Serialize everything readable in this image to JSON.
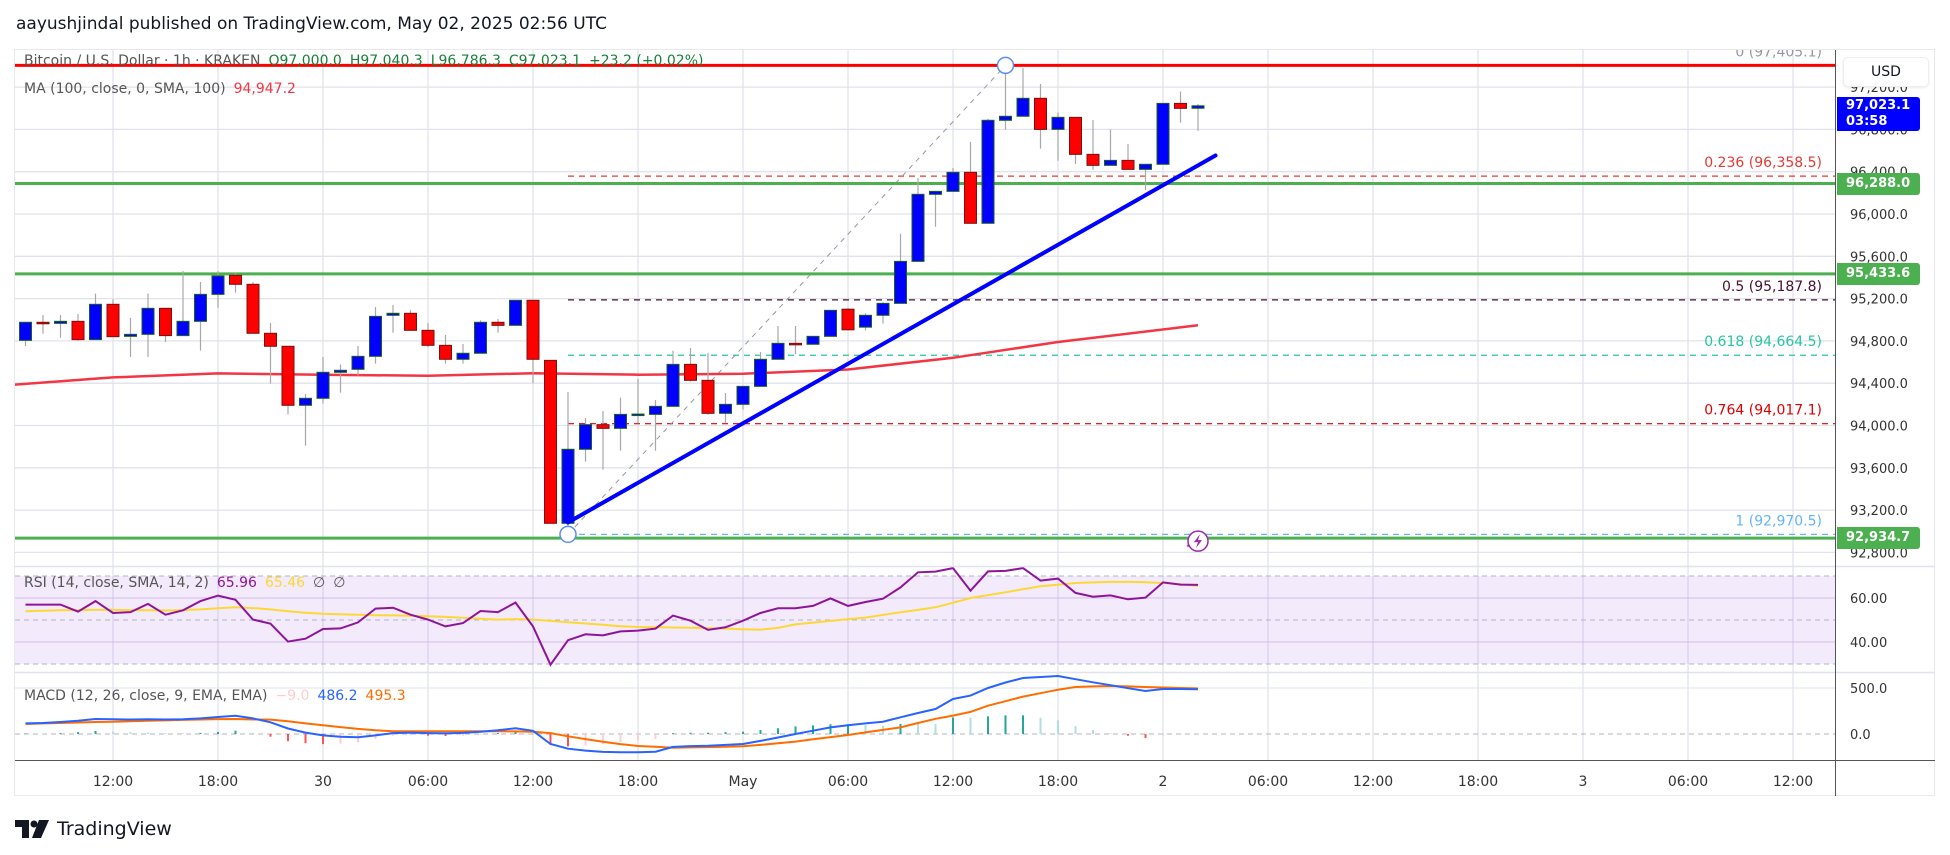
{
  "header": {
    "published": "aayushjindal published on TradingView.com, May 02, 2025 02:56 UTC"
  },
  "legend": {
    "symbol": "Bitcoin / U.S. Dollar · 1h · KRAKEN",
    "open": "O97,000.0",
    "high": "H97,040.3",
    "low": "L96,786.3",
    "close": "C97,023.1",
    "change": "+23.2 (+0.02%)",
    "ma_label": "MA (100, close, 0, SMA, 100)",
    "ma_value": "94,947.2",
    "rsi_label": "RSI (14, close, SMA, 14, 2)",
    "rsi_value": "65.96",
    "rsi_sma_value": "65.46",
    "rsi_extra1": "∅",
    "rsi_extra2": "∅",
    "macd_label": "MACD (12, 26, close, 9, EMA, EMA)",
    "macd_hist": "−9.0",
    "macd_value": "486.2",
    "macd_signal": "495.3"
  },
  "price_axis": {
    "currency": "USD",
    "ticks": [
      "97,200.0",
      "96,800.0",
      "96,400.0",
      "96,000.0",
      "95,600.0",
      "95,200.0",
      "94,800.0",
      "94,400.0",
      "94,000.0",
      "93,600.0",
      "93,200.0",
      "92,800.0"
    ],
    "tick_values": [
      97200,
      96800,
      96400,
      96000,
      95600,
      95200,
      94800,
      94400,
      94000,
      93600,
      93200,
      92800
    ],
    "last_price": "97,023.1",
    "last_price_value": 97023.1,
    "countdown": "03:58",
    "badges": [
      {
        "label": "96,288.0",
        "value": 96288.0
      },
      {
        "label": "95,433.6",
        "value": 95433.6
      },
      {
        "label": "92,934.7",
        "value": 92934.7
      }
    ]
  },
  "rsi_axis": {
    "ticks": [
      "60.00",
      "40.00"
    ],
    "tick_values": [
      60,
      40
    ]
  },
  "macd_axis": {
    "ticks": [
      "500.0",
      "0.0"
    ],
    "tick_values": [
      500,
      0
    ]
  },
  "time_axis": {
    "labels": [
      "12:00",
      "18:00",
      "30",
      "06:00",
      "12:00",
      "18:00",
      "May",
      "06:00",
      "12:00",
      "18:00",
      "2",
      "06:00",
      "12:00",
      "18:00",
      "3",
      "06:00",
      "12:00"
    ]
  },
  "colors": {
    "up": "#0000ff",
    "down": "#ff0000",
    "support": "#4caf50",
    "resistance": "#ff0000",
    "trendline": "#0000ff",
    "ma": "#f23645",
    "rsi": "#8e1599",
    "rsi_sma": "#fdd835",
    "macd": "#2962ff",
    "signal": "#ff6d00",
    "last_price": "#0000ff"
  },
  "chart_data": {
    "type": "candlestick",
    "interval": "1h",
    "start": "2025-04-29 07:00",
    "candles_ohlc": [
      [
        94805,
        94980,
        94752,
        94976
      ],
      [
        94976,
        95045,
        94868,
        94970
      ],
      [
        94966,
        95045,
        94830,
        94985
      ],
      [
        94985,
        95054,
        94802,
        94812
      ],
      [
        94812,
        95247,
        94812,
        95146
      ],
      [
        95146,
        95193,
        94840,
        94840
      ],
      [
        94843,
        95017,
        94648,
        94862
      ],
      [
        94862,
        95247,
        94648,
        95108
      ],
      [
        95108,
        95108,
        94790,
        94850
      ],
      [
        94850,
        95461,
        94850,
        94985
      ],
      [
        94985,
        95357,
        94708,
        95240
      ],
      [
        95240,
        95460,
        95114,
        95414
      ],
      [
        95420,
        95440,
        95256,
        95335
      ],
      [
        95335,
        95357,
        94872,
        94872
      ],
      [
        94872,
        94969,
        94396,
        94749
      ],
      [
        94749,
        94749,
        94103,
        94191
      ],
      [
        94191,
        94298,
        93809,
        94257
      ],
      [
        94257,
        94648,
        94207,
        94503
      ],
      [
        94503,
        94578,
        94311,
        94522
      ],
      [
        94531,
        94752,
        94472,
        94654
      ],
      [
        94654,
        95120,
        94585,
        95032
      ],
      [
        95042,
        95140,
        94878,
        95061
      ],
      [
        95061,
        95092,
        94900,
        94900
      ],
      [
        94900,
        94969,
        94740,
        94758
      ],
      [
        94758,
        94856,
        94585,
        94626
      ],
      [
        94626,
        94771,
        94585,
        94683
      ],
      [
        94683,
        94995,
        94683,
        94976
      ],
      [
        94976,
        95007,
        94878,
        94947
      ],
      [
        94947,
        95184,
        94947,
        95184
      ],
      [
        95184,
        95184,
        94399,
        94626
      ],
      [
        94616,
        94616,
        93075,
        93075
      ],
      [
        93075,
        94317,
        92970,
        93775
      ],
      [
        93775,
        94071,
        93658,
        94008
      ],
      [
        94008,
        94137,
        93582,
        93973
      ],
      [
        93973,
        94263,
        93762,
        94105
      ],
      [
        94105,
        94440,
        94020,
        94108
      ],
      [
        94105,
        94241,
        93762,
        94181
      ],
      [
        94181,
        94708,
        94181,
        94578
      ],
      [
        94578,
        94733,
        94415,
        94427
      ],
      [
        94427,
        94686,
        94102,
        94115
      ],
      [
        94115,
        94307,
        94027,
        94200
      ],
      [
        94200,
        94370,
        94150,
        94370
      ],
      [
        94370,
        94695,
        94370,
        94626
      ],
      [
        94626,
        94941,
        94626,
        94777
      ],
      [
        94777,
        94941,
        94676,
        94774
      ],
      [
        94768,
        94843,
        94768,
        94843
      ],
      [
        94843,
        95092,
        94843,
        95089
      ],
      [
        95100,
        95110,
        94900,
        94905
      ],
      [
        94930,
        95060,
        94900,
        95042
      ],
      [
        95042,
        95165,
        94963,
        95155
      ],
      [
        95155,
        95814,
        95155,
        95552
      ],
      [
        95552,
        96340,
        95552,
        96186
      ],
      [
        96186,
        96214,
        95880,
        96214
      ],
      [
        96214,
        96435,
        96214,
        96394
      ],
      [
        96394,
        96681,
        95912,
        95912
      ],
      [
        95912,
        96900,
        95912,
        96886
      ],
      [
        96886,
        97405,
        96797,
        96924
      ],
      [
        96924,
        97380,
        96924,
        97094
      ],
      [
        97094,
        97229,
        96618,
        96800
      ],
      [
        96800,
        96961,
        96504,
        96914
      ],
      [
        96914,
        96914,
        96473,
        96564
      ],
      [
        96564,
        96889,
        96419,
        96460
      ],
      [
        96460,
        96797,
        96460,
        96507
      ],
      [
        96507,
        96662,
        96422,
        96422
      ],
      [
        96422,
        96470,
        96227,
        96470
      ],
      [
        96470,
        97046,
        96470,
        97046
      ],
      [
        97046,
        97157,
        96863,
        96999
      ],
      [
        97000,
        97040,
        96786,
        97023.1
      ]
    ],
    "ma100": [
      [
        "2025-04-29 05:00",
        94370
      ],
      [
        "2025-04-29 12:00",
        94455
      ],
      [
        "2025-04-29 18:00",
        94493
      ],
      [
        "2025-04-30 00:00",
        94480
      ],
      [
        "2025-04-30 06:00",
        94470
      ],
      [
        "2025-04-30 12:00",
        94495
      ],
      [
        "2025-04-30 18:00",
        94480
      ],
      [
        "2025-05-01 00:00",
        94490
      ],
      [
        "2025-05-01 06:00",
        94530
      ],
      [
        "2025-05-01 12:00",
        94640
      ],
      [
        "2025-05-01 18:00",
        94790
      ],
      [
        "2025-05-02 02:00",
        94947.2
      ]
    ],
    "horizontal_lines": [
      {
        "price": 97405.1,
        "color": "#ff0000"
      },
      {
        "price": 96288.0,
        "color": "#4caf50"
      },
      {
        "price": 95433.6,
        "color": "#4caf50"
      },
      {
        "price": 92934.7,
        "color": "#4caf50"
      }
    ],
    "trendline": [
      [
        "2025-04-30 14:00",
        93083
      ],
      [
        "2025-05-02 03:00",
        96553
      ]
    ],
    "fibonacci": {
      "from": [
        "2025-04-30 14:00",
        92970.5
      ],
      "to": [
        "2025-05-01 15:00",
        97405.1
      ],
      "levels": [
        {
          "label": "0 (97,405.1)",
          "price": 97405.1,
          "color": "#9598a1"
        },
        {
          "label": "0.236 (96,358.5)",
          "price": 96358.5,
          "color": "#e53935"
        },
        {
          "label": "0.5 (95,187.8)",
          "price": 95187.8,
          "color": "#4a0f2e"
        },
        {
          "label": "0.618 (94,664.5)",
          "price": 94664.5,
          "color": "#26c6a0"
        },
        {
          "label": "0.764 (94,017.1)",
          "price": 94017.1,
          "color": "#e00000"
        },
        {
          "label": "1 (92,970.5)",
          "price": 92970.5,
          "color": "#64b5f6"
        }
      ]
    },
    "rsi": [
      57,
      57,
      57,
      53.8,
      58.6,
      53.2,
      53.6,
      57.3,
      52.4,
      54.4,
      58.6,
      61.1,
      59.2,
      50.2,
      48.3,
      40.2,
      41.5,
      45.9,
      46.2,
      48.9,
      55.2,
      55.6,
      52.4,
      50.2,
      47.1,
      48.6,
      54.1,
      53.6,
      57.9,
      47.1,
      29.7,
      40.8,
      43.5,
      43,
      44.8,
      45.2,
      46.1,
      52,
      49.7,
      45.5,
      46.7,
      49.7,
      53.2,
      55.3,
      55.3,
      56.4,
      59.8,
      56.4,
      58.2,
      59.7,
      64.8,
      71.7,
      72,
      73.6,
      63.3,
      72.1,
      72.3,
      73.6,
      67.9,
      68.8,
      62.3,
      60.6,
      61.2,
      59.4,
      60.2,
      67.1,
      66.1,
      65.96
    ],
    "rsi_sma": [
      54,
      54.2,
      54.4,
      54.5,
      54.6,
      54.6,
      54.5,
      54.4,
      54.3,
      54.5,
      54.8,
      55.3,
      55.8,
      55.4,
      54.8,
      54,
      53.3,
      52.8,
      52.6,
      52.4,
      52.2,
      52.1,
      51.9,
      51.7,
      51.4,
      51,
      50.6,
      50.2,
      50.4,
      50.2,
      49.6,
      49,
      48.4,
      47.8,
      47.2,
      46.8,
      46.7,
      46.6,
      46.5,
      46.3,
      46.1,
      45.8,
      45.6,
      46.4,
      48,
      48.8,
      49.6,
      50.4,
      51.1,
      52.3,
      53.5,
      54.6,
      55.8,
      57.8,
      60,
      61.3,
      62.6,
      64,
      65.3,
      66,
      66.8,
      67.1,
      67.3,
      67.3,
      67.2,
      66.8,
      66.3,
      65.46
    ],
    "rsi_bands": {
      "upper": 70,
      "middle": 50,
      "lower": 30
    },
    "macd": [
      115,
      120,
      130,
      145,
      163,
      160,
      158,
      160,
      158,
      160,
      170,
      185,
      199,
      170,
      127,
      60,
      15,
      -15,
      -30,
      -36,
      -15,
      10,
      15,
      10,
      7,
      12,
      25,
      40,
      62,
      35,
      -109,
      -160,
      -180,
      -195,
      -199,
      -199,
      -192,
      -140,
      -132,
      -128,
      -118,
      -109,
      -75,
      -38,
      0,
      36,
      72,
      95,
      115,
      134,
      181,
      228,
      272,
      380,
      417,
      500,
      560,
      609,
      620,
      630,
      596,
      562,
      530,
      498,
      467,
      489,
      489,
      486.2
    ],
    "macd_signal": [
      109,
      115,
      120,
      125,
      130,
      134,
      138,
      143,
      148,
      153,
      158,
      162,
      163,
      158,
      156,
      138,
      115,
      95,
      75,
      55,
      40,
      29,
      29,
      29,
      29,
      29,
      29,
      29,
      28,
      25,
      10,
      -25,
      -55,
      -85,
      -110,
      -130,
      -138,
      -149,
      -146,
      -142,
      -138,
      -134,
      -118,
      -100,
      -83,
      -58,
      -34,
      -11,
      17,
      45,
      72,
      120,
      165,
      200,
      240,
      308,
      357,
      406,
      444,
      482,
      511,
      517,
      522,
      517,
      511,
      505,
      500,
      495.3
    ]
  }
}
